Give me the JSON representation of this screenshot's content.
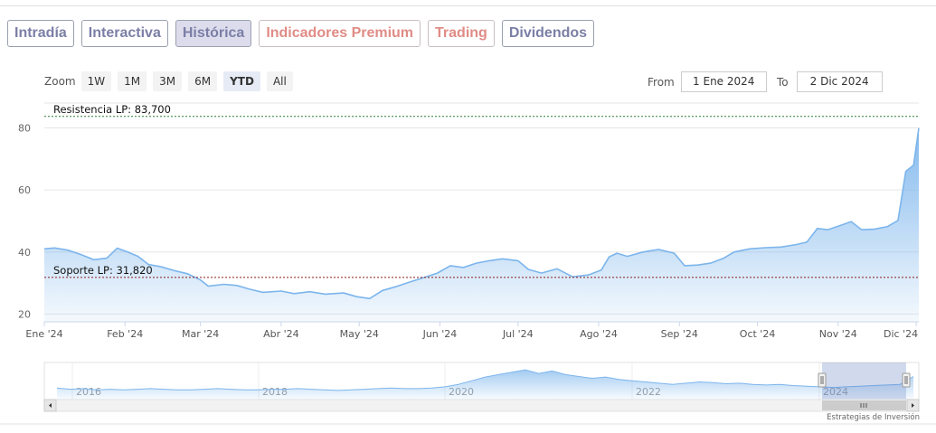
{
  "tabs": [
    {
      "label": "Intradía",
      "style": "purple"
    },
    {
      "label": "Interactiva",
      "style": "purple"
    },
    {
      "label": "Histórica",
      "style": "active"
    },
    {
      "label": "Indicadores Premium",
      "style": "salmon"
    },
    {
      "label": "Trading",
      "style": "salmon"
    },
    {
      "label": "Dividendos",
      "style": "purple"
    }
  ],
  "zoom": {
    "label": "Zoom",
    "options": [
      "1W",
      "1M",
      "3M",
      "6M",
      "YTD",
      "All"
    ],
    "selected": "YTD"
  },
  "range": {
    "from_label": "From",
    "from_value": "1 Ene 2024",
    "to_label": "To",
    "to_value": "2 Dic 2024"
  },
  "watermark": "Estrategias de Inversión",
  "colors": {
    "series": "#7cb5ec",
    "resistance": "#2e7d32",
    "support": "#8b1a1a"
  },
  "chart_data": {
    "type": "area",
    "title": "",
    "xlabel": "",
    "ylabel": "",
    "ylim": [
      17.5,
      88
    ],
    "yticks": [
      20,
      40,
      60,
      80
    ],
    "x_range": [
      "2024-01-01",
      "2024-12-02"
    ],
    "x_ticks": [
      {
        "label": "Ene '24",
        "date": "2024-01-01"
      },
      {
        "label": "Feb '24",
        "date": "2024-02-01"
      },
      {
        "label": "Mar '24",
        "date": "2024-03-01"
      },
      {
        "label": "Abr '24",
        "date": "2024-04-01"
      },
      {
        "label": "May '24",
        "date": "2024-05-01"
      },
      {
        "label": "Jun '24",
        "date": "2024-06-01"
      },
      {
        "label": "Jul '24",
        "date": "2024-07-01"
      },
      {
        "label": "Ago '24",
        "date": "2024-08-01"
      },
      {
        "label": "Sep '24",
        "date": "2024-09-01"
      },
      {
        "label": "Oct '24",
        "date": "2024-10-01"
      },
      {
        "label": "Nov '24",
        "date": "2024-11-01"
      },
      {
        "label": "Dic '24",
        "date": "2024-12-01"
      }
    ],
    "grid": true,
    "legend": "none",
    "series": [
      {
        "points": [
          [
            "2024-01-01",
            41.0
          ],
          [
            "2024-01-05",
            41.3
          ],
          [
            "2024-01-10",
            40.6
          ],
          [
            "2024-01-15",
            39.2
          ],
          [
            "2024-01-20",
            37.5
          ],
          [
            "2024-01-25",
            38.0
          ],
          [
            "2024-01-29",
            41.2
          ],
          [
            "2024-02-02",
            40.0
          ],
          [
            "2024-02-06",
            38.6
          ],
          [
            "2024-02-10",
            36.0
          ],
          [
            "2024-02-15",
            35.2
          ],
          [
            "2024-02-20",
            34.0
          ],
          [
            "2024-02-25",
            33.0
          ],
          [
            "2024-03-01",
            31.0
          ],
          [
            "2024-03-04",
            29.0
          ],
          [
            "2024-03-10",
            29.6
          ],
          [
            "2024-03-15",
            29.2
          ],
          [
            "2024-03-20",
            28.0
          ],
          [
            "2024-03-25",
            27.0
          ],
          [
            "2024-04-01",
            27.4
          ],
          [
            "2024-04-06",
            26.6
          ],
          [
            "2024-04-12",
            27.2
          ],
          [
            "2024-04-18",
            26.4
          ],
          [
            "2024-04-25",
            26.8
          ],
          [
            "2024-04-30",
            25.6
          ],
          [
            "2024-05-05",
            25.0
          ],
          [
            "2024-05-10",
            27.6
          ],
          [
            "2024-05-15",
            28.8
          ],
          [
            "2024-05-20",
            30.2
          ],
          [
            "2024-05-26",
            31.8
          ],
          [
            "2024-05-31",
            33.2
          ],
          [
            "2024-06-05",
            35.6
          ],
          [
            "2024-06-10",
            35.0
          ],
          [
            "2024-06-15",
            36.4
          ],
          [
            "2024-06-20",
            37.2
          ],
          [
            "2024-06-25",
            37.8
          ],
          [
            "2024-07-01",
            37.2
          ],
          [
            "2024-07-05",
            34.4
          ],
          [
            "2024-07-10",
            33.2
          ],
          [
            "2024-07-16",
            34.6
          ],
          [
            "2024-07-22",
            32.0
          ],
          [
            "2024-07-28",
            32.6
          ],
          [
            "2024-08-02",
            34.2
          ],
          [
            "2024-08-05",
            38.4
          ],
          [
            "2024-08-08",
            39.6
          ],
          [
            "2024-08-12",
            38.6
          ],
          [
            "2024-08-18",
            40.0
          ],
          [
            "2024-08-24",
            40.8
          ],
          [
            "2024-08-30",
            39.6
          ],
          [
            "2024-09-03",
            35.6
          ],
          [
            "2024-09-08",
            35.8
          ],
          [
            "2024-09-13",
            36.4
          ],
          [
            "2024-09-18",
            38.0
          ],
          [
            "2024-09-22",
            40.0
          ],
          [
            "2024-09-28",
            41.0
          ],
          [
            "2024-10-04",
            41.4
          ],
          [
            "2024-10-10",
            41.6
          ],
          [
            "2024-10-16",
            42.4
          ],
          [
            "2024-10-20",
            43.2
          ],
          [
            "2024-10-24",
            47.6
          ],
          [
            "2024-10-28",
            47.2
          ],
          [
            "2024-11-02",
            48.6
          ],
          [
            "2024-11-06",
            49.8
          ],
          [
            "2024-11-10",
            47.2
          ],
          [
            "2024-11-15",
            47.4
          ],
          [
            "2024-11-20",
            48.2
          ],
          [
            "2024-11-24",
            50.2
          ],
          [
            "2024-11-27",
            66.0
          ],
          [
            "2024-11-30",
            68.0
          ],
          [
            "2024-12-02",
            80.0
          ]
        ]
      }
    ],
    "annotations": [
      {
        "label": "Resistencia LP: 83,700",
        "value": 83.7
      },
      {
        "label": "Soporte LP: 31,820",
        "value": 31.82
      }
    ],
    "navigator": {
      "year_labels": [
        "2016",
        "2018",
        "2020",
        "2022",
        "2024"
      ],
      "values": [
        36,
        34,
        35,
        33,
        34,
        33,
        34,
        35,
        34,
        33,
        33,
        34,
        35,
        34,
        33,
        33,
        34,
        34,
        35,
        34,
        33,
        32,
        33,
        34,
        35,
        36,
        35,
        35,
        36,
        38,
        42,
        48,
        54,
        58,
        62,
        66,
        60,
        64,
        58,
        55,
        52,
        54,
        50,
        48,
        46,
        44,
        42,
        44,
        46,
        45,
        43,
        44,
        42,
        41,
        42,
        40,
        39,
        38,
        37,
        38,
        39,
        40,
        41,
        42,
        55
      ]
    }
  }
}
